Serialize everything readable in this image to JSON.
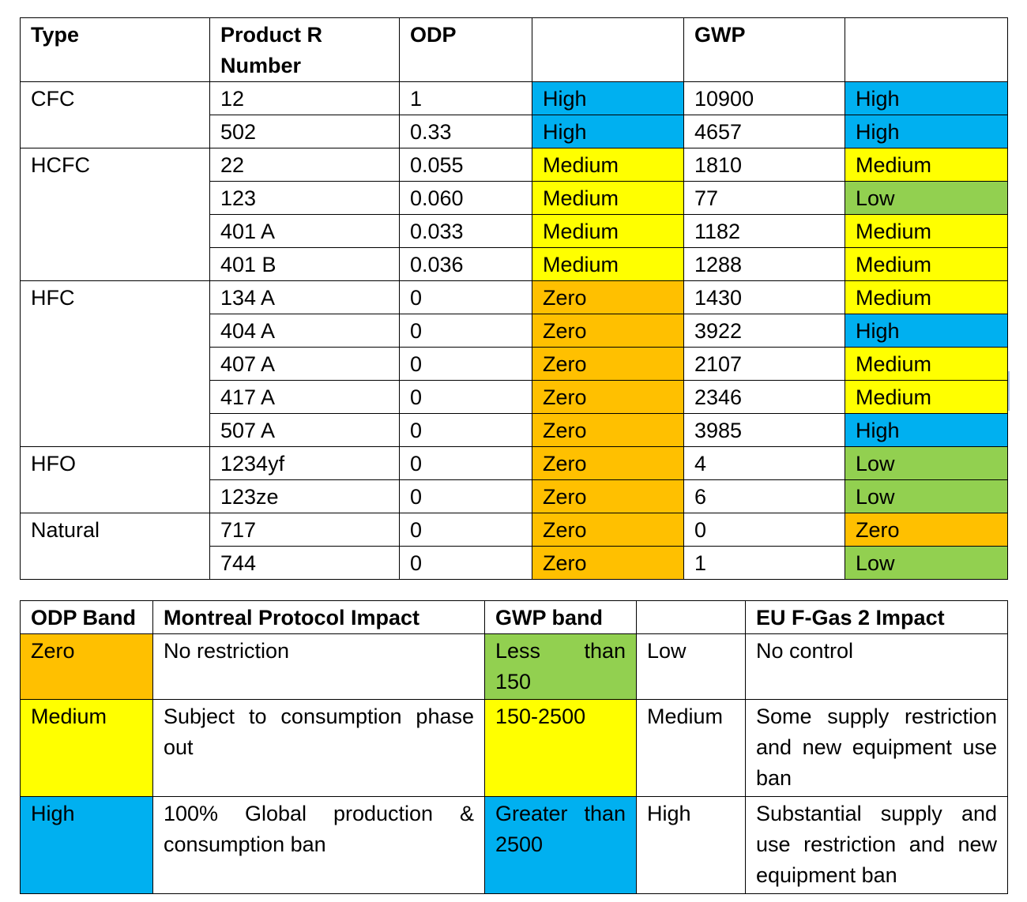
{
  "refrigerant_table": {
    "headers": {
      "type": "Type",
      "product": "Product R Number",
      "odp": "ODP",
      "odp_band": "",
      "gwp": "GWP",
      "gwp_band": ""
    },
    "rows": [
      {
        "type": "CFC",
        "product": " 12",
        "odp": "1",
        "odp_band": "High",
        "gwp": "10900",
        "gwp_band": "High"
      },
      {
        "type": "",
        "product": "502",
        "odp": "0.33",
        "odp_band": "High",
        "gwp": "4657",
        "gwp_band": "High"
      },
      {
        "type": "HCFC",
        "product": "22",
        "odp": "0.055",
        "odp_band": "Medium",
        "gwp": "1810",
        "gwp_band": "Medium"
      },
      {
        "type": "",
        "product": "123",
        "odp": "0.060",
        "odp_band": "Medium",
        "gwp": "77",
        "gwp_band": "Low"
      },
      {
        "type": "",
        "product": "401 A",
        "odp": "0.033",
        "odp_band": "Medium",
        "gwp": "1182",
        "gwp_band": "Medium"
      },
      {
        "type": "",
        "product": "401 B",
        "odp": "0.036",
        "odp_band": "Medium",
        "gwp": "1288",
        "gwp_band": "Medium"
      },
      {
        "type": "HFC",
        "product": "134 A",
        "odp": "0",
        "odp_band": "Zero",
        "gwp": "1430",
        "gwp_band": "Medium"
      },
      {
        "type": "",
        "product": "404 A",
        "odp": "0",
        "odp_band": "Zero",
        "gwp": "3922",
        "gwp_band": "High"
      },
      {
        "type": "",
        "product": "407 A",
        "odp": "0",
        "odp_band": "Zero",
        "gwp": "2107",
        "gwp_band": "Medium"
      },
      {
        "type": "",
        "product": "417 A",
        "odp": "0",
        "odp_band": "Zero",
        "gwp": "2346",
        "gwp_band": "Medium"
      },
      {
        "type": "",
        "product": "507 A",
        "odp": "0",
        "odp_band": "Zero",
        "gwp": "3985",
        "gwp_band": "High"
      },
      {
        "type": "HFO",
        "product": "1234yf",
        "odp": "0",
        "odp_band": "Zero",
        "gwp": "4",
        "gwp_band": "Low"
      },
      {
        "type": "",
        "product": "123ze",
        "odp": "0",
        "odp_band": "Zero",
        "gwp": "6",
        "gwp_band": "Low"
      },
      {
        "type": "Natural",
        "product": "717",
        "odp": "0",
        "odp_band": "Zero",
        "gwp": "0",
        "gwp_band": "Zero"
      },
      {
        "type": "",
        "product": "744",
        "odp": "0",
        "odp_band": "Zero",
        "gwp": "1",
        "gwp_band": "Low"
      }
    ]
  },
  "legend_table": {
    "headers": {
      "odp_band": "ODP Band",
      "montreal": "Montreal Protocol Impact",
      "gwp_band": "GWP band",
      "level": "",
      "eu": "EU F-Gas 2 Impact"
    },
    "rows": [
      {
        "odp_band": "Zero",
        "montreal": "No restriction",
        "gwp_band": "Less than 150",
        "level": "Low",
        "eu": "No control",
        "odp_color": "Zero",
        "gwp_color": "Low"
      },
      {
        "odp_band": "Medium",
        "montreal": "Subject to consumption phase out",
        "gwp_band": "150-2500",
        "level": "Medium",
        "eu": "Some supply restriction and new equipment use ban",
        "odp_color": "Medium",
        "gwp_color": "Medium"
      },
      {
        "odp_band": "High",
        "montreal": "100% Global production & consumption ban",
        "gwp_band": "Greater than 2500",
        "level": "High",
        "eu": "Substantial supply and use restriction and new equipment ban",
        "odp_color": "High",
        "gwp_color": "High"
      }
    ]
  },
  "colors": {
    "High": "#00b0f0",
    "Medium": "#ffff00",
    "Low": "#92d050",
    "Zero": "#ffc000"
  }
}
